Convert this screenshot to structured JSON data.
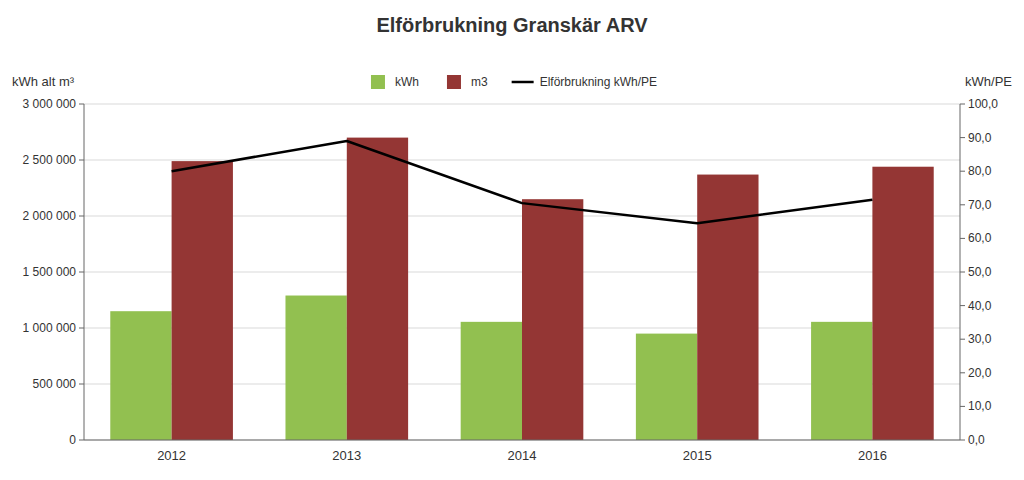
{
  "chart_data": {
    "type": "bar",
    "title": "Elförbrukning Granskär ARV",
    "ylabel": "kWh alt m³",
    "y2label": "kWh/PE",
    "categories": [
      "2012",
      "2013",
      "2014",
      "2015",
      "2016"
    ],
    "series": [
      {
        "name": "kWh",
        "type": "bar",
        "color": "#92c050",
        "values": [
          1150000,
          1290000,
          1055000,
          950000,
          1055000
        ]
      },
      {
        "name": "m3",
        "type": "bar",
        "color": "#943634",
        "values": [
          2490000,
          2700000,
          2150000,
          2370000,
          2440000
        ]
      },
      {
        "name": "Elförbrukning kWh/PE",
        "type": "line",
        "axis": "y2",
        "color": "#000000",
        "values": [
          80.0,
          89.0,
          70.5,
          64.5,
          71.5
        ]
      }
    ],
    "ylim": [
      0,
      3000000
    ],
    "yticks": [
      0,
      {
        "value": 500000,
        "label": "500 000"
      },
      {
        "value": 1000000,
        "label": "1 000 000"
      },
      {
        "value": 1500000,
        "label": "1 500 000"
      },
      {
        "value": 2000000,
        "label": "2 000 000"
      },
      {
        "value": 2500000,
        "label": "2 500 000"
      },
      {
        "value": 3000000,
        "label": "3 000 000"
      }
    ],
    "y2lim": [
      0.0,
      100.0
    ],
    "y2ticks": [
      {
        "value": 0.0,
        "label": "0,0"
      },
      {
        "value": 10.0,
        "label": "10,0"
      },
      {
        "value": 20.0,
        "label": "20,0"
      },
      {
        "value": 30.0,
        "label": "30,0"
      },
      {
        "value": 40.0,
        "label": "40,0"
      },
      {
        "value": 50.0,
        "label": "50,0"
      },
      {
        "value": 60.0,
        "label": "60,0"
      },
      {
        "value": 70.0,
        "label": "70,0"
      },
      {
        "value": 80.0,
        "label": "80,0"
      },
      {
        "value": 90.0,
        "label": "90,0"
      },
      {
        "value": 100.0,
        "label": "100,0"
      }
    ],
    "grid": true,
    "legend": "top"
  }
}
